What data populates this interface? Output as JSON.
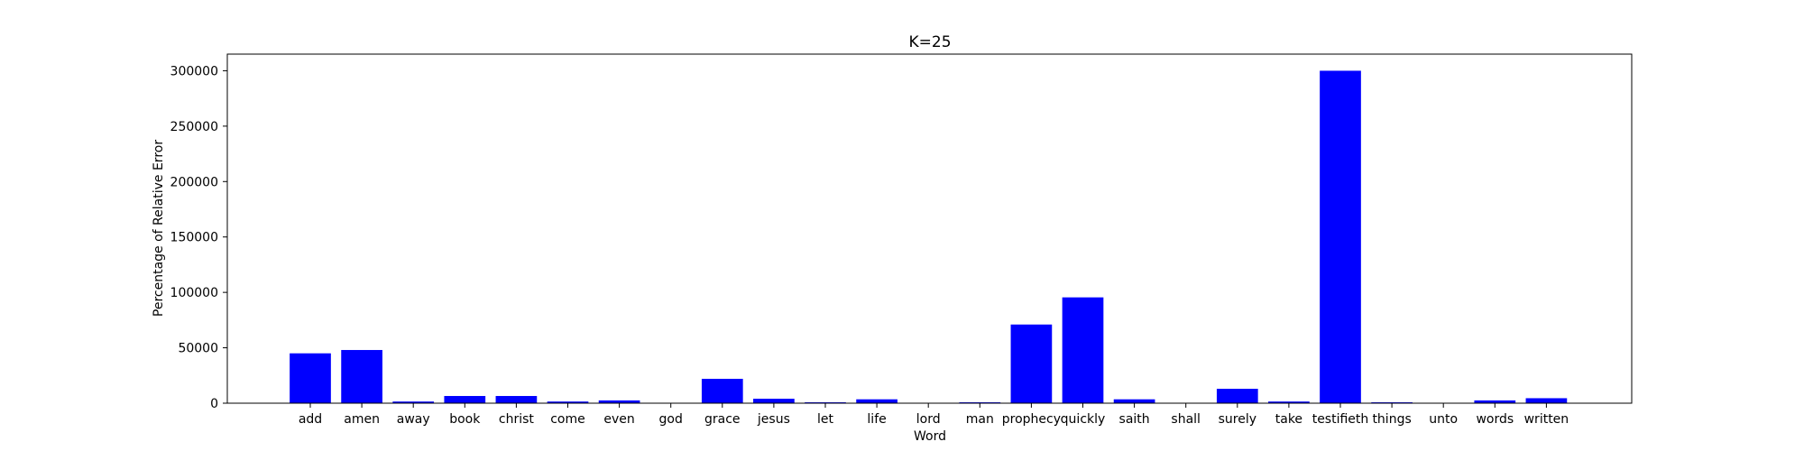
{
  "chart_data": {
    "type": "bar",
    "title": "K=25",
    "xlabel": "Word",
    "ylabel": "Percentage of Relative Error",
    "categories": [
      "add",
      "amen",
      "away",
      "book",
      "christ",
      "come",
      "even",
      "god",
      "grace",
      "jesus",
      "let",
      "life",
      "lord",
      "man",
      "prophecy",
      "quickly",
      "saith",
      "shall",
      "surely",
      "take",
      "testifieth",
      "things",
      "unto",
      "words",
      "written"
    ],
    "values": [
      45000,
      48000,
      1500,
      6500,
      6500,
      1500,
      2500,
      0,
      22000,
      4000,
      800,
      3500,
      0,
      800,
      71000,
      95500,
      3500,
      0,
      13000,
      1500,
      300000,
      800,
      0,
      2500,
      4500
    ],
    "ylim": [
      0,
      315000
    ],
    "yticks": [
      0,
      50000,
      100000,
      150000,
      200000,
      250000,
      300000
    ],
    "ytick_labels": [
      "0",
      "50000",
      "100000",
      "150000",
      "200000",
      "250000",
      "300000"
    ],
    "bar_color": "#0000ff",
    "grid": false,
    "legend": "none"
  }
}
